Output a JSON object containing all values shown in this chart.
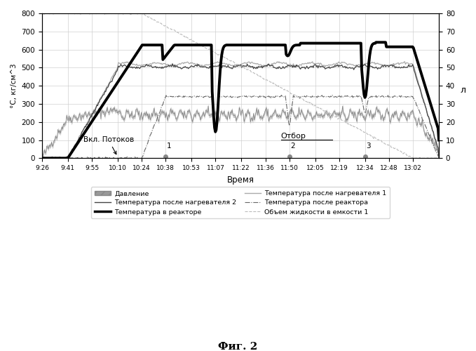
{
  "title": "",
  "xlabel": "Время",
  "ylabel_left": "°С, кг/см^3",
  "ylabel_right": "л",
  "ylim_left": [
    0,
    800
  ],
  "ylim_right": [
    0,
    80
  ],
  "yticks_left": [
    0,
    100,
    200,
    300,
    400,
    500,
    600,
    700,
    800
  ],
  "yticks_right": [
    0,
    10,
    20,
    30,
    40,
    50,
    60,
    70,
    80
  ],
  "xtick_labels": [
    "9:26",
    "9:41",
    "9:55",
    "10:10",
    "10:24",
    "10:38",
    "10:53",
    "11:07",
    "11:22",
    "11:36",
    "11:50",
    "12:05",
    "12:19",
    "12:34",
    "12:48",
    "13:02"
  ],
  "fig_caption": "Фиг. 2",
  "ann_potok": "Вкл. Потоков",
  "ann_otbor": "Отбор",
  "background_color": "#ffffff",
  "grid_color": "#cccccc",
  "legend_col1": [
    "Давление",
    "Температура после нагревателя 2",
    "Температура в реакторе"
  ],
  "legend_col2": [
    "Температура после нагревателя 1",
    "Температура после реактора",
    "Объем жидкости в емкости 1"
  ]
}
